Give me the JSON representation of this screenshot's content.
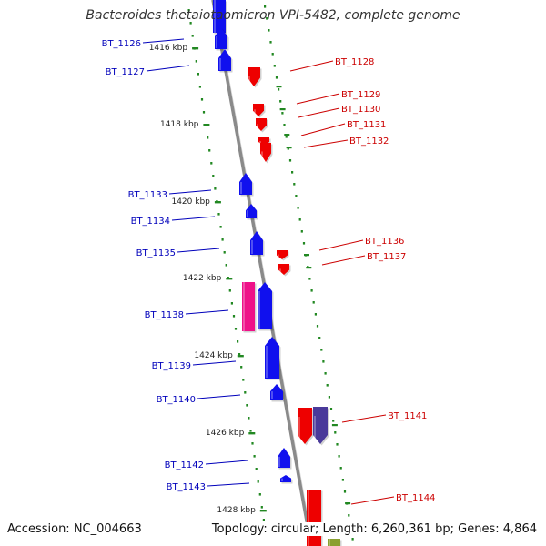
{
  "title": "Bacteroides thetaiotaomicron VPI-5482, complete genome",
  "footer": {
    "accession": "Accession: NC_004663",
    "summary": "Topology: circular; Length: 6,260,361 bp; Genes: 4,864"
  },
  "colors": {
    "forward_gene": "#ee0000",
    "reverse_gene": "#1010ee",
    "pink_gene": "#ee1188",
    "purple_gene": "#4a3a9a",
    "olive_gene": "#8aa030",
    "backbone": "#8a8a8a",
    "tick": "#228822",
    "forward_label": "#cc0000",
    "reverse_label": "#0000bb"
  },
  "ruler": {
    "unit": "kbp",
    "ticks": [
      "1416 kbp",
      "1418 kbp",
      "1420 kbp",
      "1422 kbp",
      "1424 kbp",
      "1426 kbp",
      "1428 kbp"
    ]
  },
  "genes": [
    {
      "id": "BT_1126",
      "strand": "reverse"
    },
    {
      "id": "BT_1127",
      "strand": "reverse"
    },
    {
      "id": "BT_1128",
      "strand": "forward"
    },
    {
      "id": "BT_1129",
      "strand": "forward"
    },
    {
      "id": "BT_1130",
      "strand": "forward"
    },
    {
      "id": "BT_1131",
      "strand": "forward"
    },
    {
      "id": "BT_1132",
      "strand": "forward"
    },
    {
      "id": "BT_1133",
      "strand": "reverse"
    },
    {
      "id": "BT_1134",
      "strand": "reverse"
    },
    {
      "id": "BT_1135",
      "strand": "reverse"
    },
    {
      "id": "BT_1136",
      "strand": "forward"
    },
    {
      "id": "BT_1137",
      "strand": "forward"
    },
    {
      "id": "BT_1138",
      "strand": "reverse"
    },
    {
      "id": "BT_1139",
      "strand": "reverse"
    },
    {
      "id": "BT_1140",
      "strand": "reverse"
    },
    {
      "id": "BT_1141",
      "strand": "forward"
    },
    {
      "id": "BT_1142",
      "strand": "reverse"
    },
    {
      "id": "BT_1143",
      "strand": "reverse"
    },
    {
      "id": "BT_1144",
      "strand": "forward"
    }
  ]
}
